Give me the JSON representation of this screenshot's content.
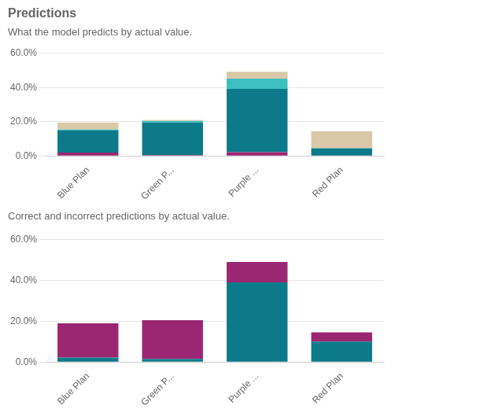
{
  "chart_data": [
    {
      "type": "bar",
      "title": "Predictions",
      "subtitle": "What the model predicts by actual value.",
      "categories": [
        "Blue Plan",
        "Green P...",
        "Purple ...",
        "Red Plan"
      ],
      "series": [
        {
          "color": "#9b2772",
          "values": [
            0.02,
            0.005,
            0.022,
            0.0
          ]
        },
        {
          "color": "#0d7a8a",
          "values": [
            0.13,
            0.19,
            0.37,
            0.045
          ]
        },
        {
          "color": "#3dbfbf",
          "values": [
            0.005,
            0.01,
            0.06,
            0.0
          ]
        },
        {
          "color": "#d9c9a8",
          "values": [
            0.04,
            0.005,
            0.04,
            0.1
          ]
        }
      ],
      "stacked": true,
      "ylim": [
        0,
        0.65
      ],
      "yticks": [
        {
          "value": 0.0,
          "label": "0.0%"
        },
        {
          "value": 0.2,
          "label": "20.0%"
        },
        {
          "value": 0.4,
          "label": "40.0%"
        },
        {
          "value": 0.6,
          "label": "60.0%"
        }
      ],
      "grid": true
    },
    {
      "type": "bar",
      "subtitle": "Correct and incorrect predictions by actual value.",
      "categories": [
        "Blue Plan",
        "Green P...",
        "Purple ...",
        "Red Plan"
      ],
      "series": [
        {
          "color": "#0d7a8a",
          "values": [
            0.022,
            0.015,
            0.39,
            0.1
          ]
        },
        {
          "color": "#9b2772",
          "values": [
            0.168,
            0.19,
            0.1,
            0.045
          ]
        }
      ],
      "stacked": true,
      "ylim": [
        0,
        0.65
      ],
      "yticks": [
        {
          "value": 0.0,
          "label": "0.0%"
        },
        {
          "value": 0.2,
          "label": "20.0%"
        },
        {
          "value": 0.4,
          "label": "40.0%"
        },
        {
          "value": 0.6,
          "label": "60.0%"
        }
      ],
      "grid": true
    }
  ]
}
